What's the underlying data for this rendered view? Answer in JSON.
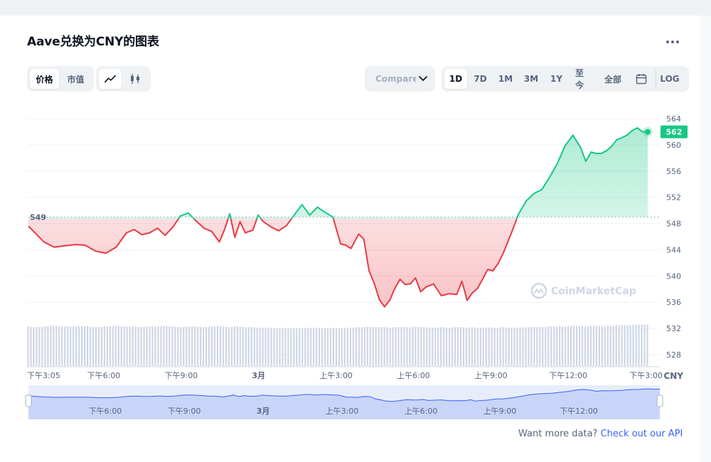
{
  "title": "Aave兑换为CNY的图表",
  "tabs_metric": [
    {
      "label": "价格",
      "active": true
    },
    {
      "label": "市值",
      "active": false
    }
  ],
  "chart_style": {
    "line": "line-chart-icon",
    "candle": "candlestick-icon",
    "active": "line"
  },
  "compare_label": "Compare with",
  "ranges": [
    {
      "label": "1D",
      "active": true
    },
    {
      "label": "7D",
      "active": false
    },
    {
      "label": "1M",
      "active": false
    },
    {
      "label": "3M",
      "active": false
    },
    {
      "label": "1Y",
      "active": false
    },
    {
      "label": "至今",
      "active": false
    },
    {
      "label": "全部",
      "active": false
    }
  ],
  "calendar_icon": "calendar-icon",
  "log_label": "LOG",
  "currency_label": "CNY",
  "watermark": "CoinMarketCap",
  "footer": {
    "prompt": "Want more data?",
    "link": "Check out our API"
  },
  "colors": {
    "up": "#16c784",
    "down": "#ea3943",
    "grid": "#eff2f5",
    "volume": "#cfd6e4"
  },
  "chart_data": {
    "type": "line",
    "baseline": 549,
    "baseline_label": "549",
    "current_price": 562,
    "current_label": "562",
    "ylim": [
      526,
      566
    ],
    "y_ticks": [
      564,
      560,
      556,
      552,
      548,
      544,
      540,
      536,
      532,
      528
    ],
    "x_tick_labels": [
      "下午3:05",
      "下午6:00",
      "下午9:00",
      "3月",
      "上午3:00",
      "上午6:00",
      "上午9:00",
      "下午12:00",
      "下午3:00"
    ],
    "x_tick_hours": [
      0,
      2.92,
      5.92,
      8.92,
      11.92,
      14.92,
      17.92,
      20.92,
      23.92
    ],
    "navigator_labels": [
      "下午6:00",
      "下午9:00",
      "3月",
      "上午3:00",
      "上午6:00",
      "上午9:00",
      "下午12:00"
    ],
    "navigator_hours": [
      2.92,
      5.92,
      8.92,
      11.92,
      14.92,
      17.92,
      20.92
    ],
    "series": [
      {
        "x_hours": [
          0,
          0.3,
          0.6,
          1.0,
          1.4,
          1.8,
          2.2,
          2.6,
          3.0,
          3.4,
          3.8,
          4.1,
          4.4,
          4.7,
          5.0,
          5.3,
          5.6,
          5.9,
          6.2,
          6.5,
          6.8,
          7.1,
          7.4,
          7.6,
          7.8,
          8.0,
          8.2,
          8.4,
          8.7,
          8.9,
          9.1,
          9.4,
          9.7,
          10.0,
          10.3,
          10.6,
          10.9,
          11.2,
          11.5,
          11.8,
          12.1,
          12.3,
          12.5,
          12.8,
          13.0,
          13.2,
          13.4,
          13.6,
          13.8,
          14.0,
          14.2,
          14.4,
          14.6,
          14.8,
          15.0,
          15.2,
          15.4,
          15.7,
          16.0,
          16.3,
          16.6,
          16.8,
          17.0,
          17.2,
          17.4,
          17.6,
          17.8,
          18.0,
          18.2,
          18.4,
          18.7,
          19.0,
          19.3,
          19.6,
          19.9,
          20.2,
          20.5,
          20.8,
          21.1,
          21.4,
          21.6,
          21.8,
          22.0,
          22.2,
          22.4,
          22.6,
          22.8,
          23.0,
          23.2,
          23.4,
          23.6,
          23.8,
          24.0
        ],
        "values": [
          547.6,
          546.4,
          545.2,
          544.4,
          544.6,
          544.8,
          544.7,
          543.8,
          543.5,
          544.4,
          546.6,
          547.1,
          546.3,
          546.6,
          547.3,
          546.2,
          547.5,
          549.2,
          549.6,
          548.4,
          547.3,
          546.8,
          545.2,
          547.1,
          549.5,
          545.9,
          548.3,
          546.6,
          547.0,
          549.3,
          548.3,
          547.5,
          546.9,
          547.7,
          549.3,
          550.9,
          549.3,
          550.5,
          549.7,
          549.0,
          544.9,
          544.7,
          544.2,
          546.4,
          545.6,
          540.8,
          538.9,
          536.4,
          535.3,
          536.3,
          538.1,
          539.5,
          538.7,
          538.8,
          539.7,
          537.6,
          538.3,
          538.8,
          537.0,
          537.3,
          537.2,
          539.2,
          536.3,
          537.4,
          538.1,
          539.5,
          541.0,
          540.8,
          541.9,
          543.5,
          546.4,
          549.5,
          551.5,
          552.6,
          553.2,
          555.1,
          557.2,
          559.9,
          561.5,
          559.6,
          557.5,
          558.9,
          558.7,
          558.7,
          559.1,
          559.8,
          560.8,
          561.1,
          561.5,
          562.2,
          562.6,
          562.0,
          562.0
        ],
        "volume": [
          532.3,
          532.2,
          532.3,
          532.4,
          532.3,
          532.3,
          532.4,
          532.2,
          532.3,
          532.4,
          532.3,
          532.3,
          532.2,
          532.3,
          532.3,
          532.4,
          532.3,
          532.2,
          532.3,
          532.3,
          532.2,
          532.3,
          532.4,
          532.3,
          532.2,
          532.3,
          532.3,
          532.2,
          532.2,
          532.1,
          532.1,
          532.1,
          532.0,
          532.1,
          532.0,
          532.0,
          532.1,
          532.1,
          532.0,
          532.1,
          532.0,
          532.1,
          532.1,
          532.2,
          532.2,
          532.3,
          532.2,
          532.2,
          532.2,
          532.1,
          532.2,
          532.2,
          532.2,
          532.2,
          532.3,
          532.2,
          532.2,
          532.1,
          532.2,
          532.1,
          532.2,
          532.2,
          532.1,
          532.2,
          532.1,
          532.1,
          532.2,
          532.1,
          532.1,
          532.2,
          532.1,
          532.1,
          532.2,
          532.2,
          532.2,
          532.3,
          532.3,
          532.3,
          532.4,
          532.4,
          532.3,
          532.4,
          532.4,
          532.3,
          532.4,
          532.4,
          532.5,
          532.5,
          532.5,
          532.5,
          532.6,
          532.6,
          532.6
        ]
      }
    ]
  }
}
